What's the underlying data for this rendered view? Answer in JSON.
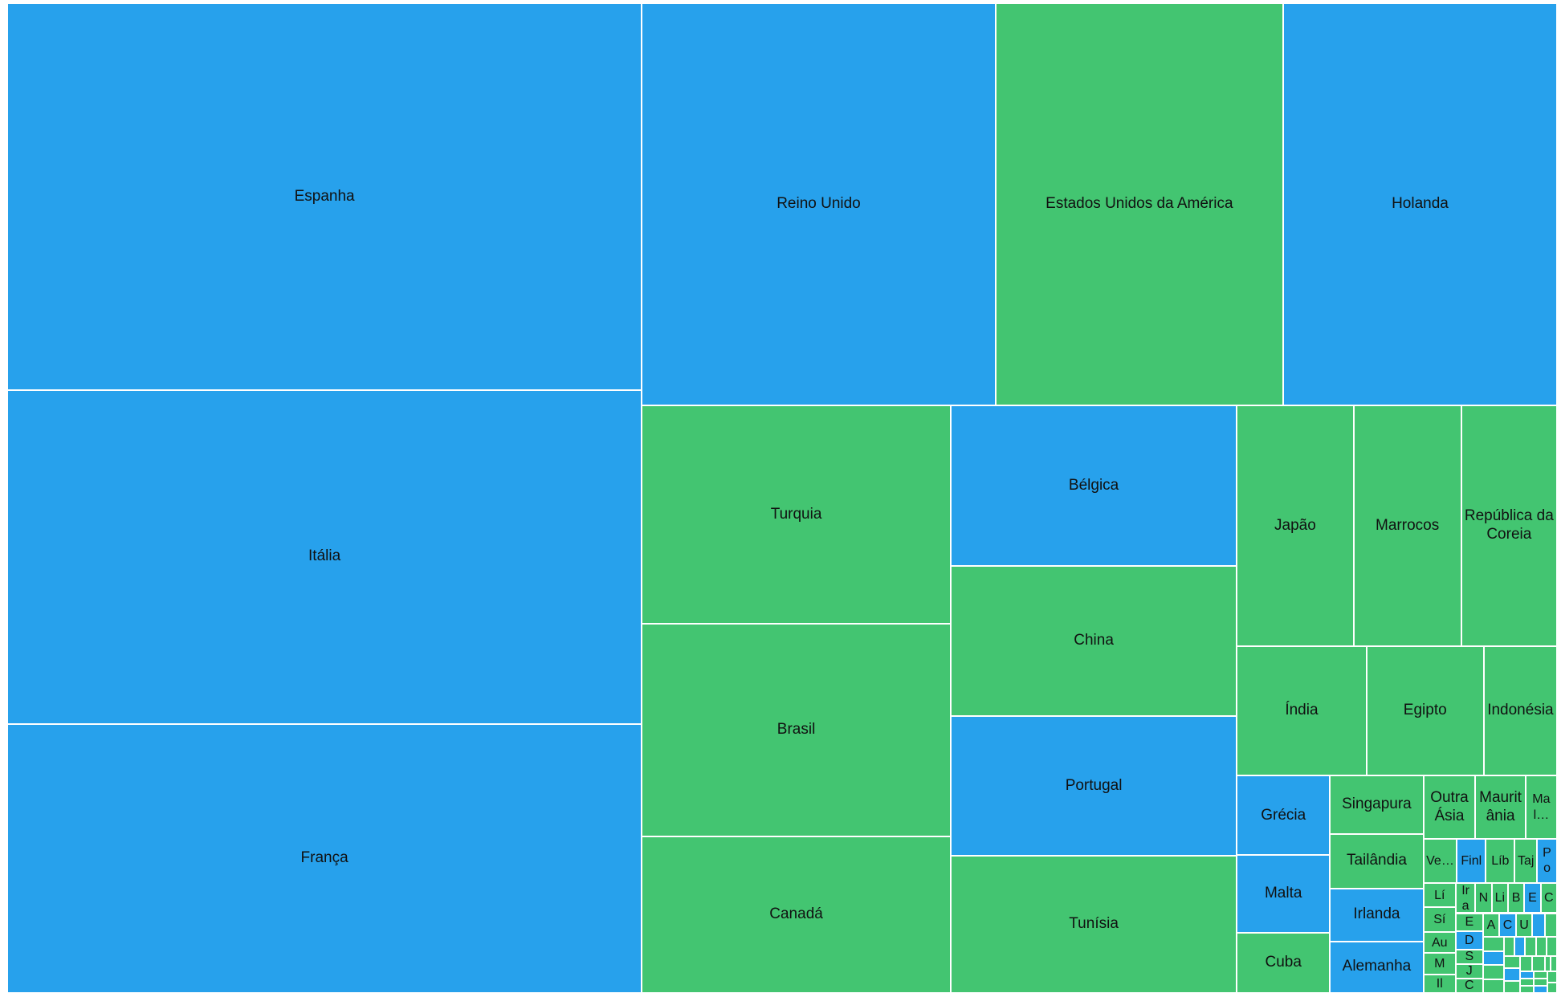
{
  "chart_data": {
    "type": "treemap",
    "categories": [
      "Espanha",
      "Itália",
      "França",
      "Reino Unido",
      "Estados Unidos da América",
      "Holanda",
      "Turquia",
      "Brasil",
      "Canadá",
      "Bélgica",
      "China",
      "Portugal",
      "Tunísia",
      "Japão",
      "Marrocos",
      "República da Coreia",
      "Índia",
      "Egipto",
      "Indonésia",
      "Grécia",
      "Malta",
      "Cuba",
      "Singapura",
      "Tailândia",
      "Irlanda",
      "Alemanha",
      "Outra Ásia",
      "Mauritânia",
      "Mal…",
      "Ve…",
      "Finl",
      "Líb",
      "Taj",
      "Po",
      "Lí",
      "Sí",
      "Au",
      "M",
      "Il",
      "Ira",
      "N",
      "Li",
      "B",
      "E",
      "C",
      "E",
      "D",
      "S",
      "J",
      "C",
      "A",
      "C",
      "U",
      null,
      null,
      null,
      null,
      null,
      null,
      null,
      null,
      null,
      null,
      null,
      null,
      null,
      null,
      null,
      null,
      null,
      null,
      null,
      null,
      null,
      null,
      null,
      null,
      null,
      null
    ],
    "values": [
      2488,
      2148,
      1731,
      1443,
      1173,
      1117,
      683,
      667,
      490,
      465,
      436,
      405,
      398,
      285,
      263,
      234,
      170,
      154,
      96,
      75,
      73,
      57,
      55,
      52,
      50,
      49,
      33,
      32,
      20,
      15,
      13,
      13,
      10,
      9,
      8,
      8,
      7,
      7,
      6,
      6,
      5,
      5,
      5,
      5,
      5,
      5,
      5,
      4,
      4,
      4,
      4,
      4,
      4,
      3,
      3,
      3,
      3,
      3,
      3,
      2,
      2,
      2,
      2,
      2,
      2,
      2,
      2,
      2,
      2,
      1,
      1,
      1,
      1,
      1,
      1,
      1,
      1,
      1,
      1
    ],
    "colors": [
      "#27a1ec",
      "#27a1ec",
      "#27a1ec",
      "#27a1ec",
      "#43c571",
      "#27a1ec",
      "#43c571",
      "#43c571",
      "#43c571",
      "#27a1ec",
      "#43c571",
      "#27a1ec",
      "#43c571",
      "#43c571",
      "#43c571",
      "#43c571",
      "#43c571",
      "#43c571",
      "#43c571",
      "#27a1ec",
      "#27a1ec",
      "#43c571",
      "#43c571",
      "#43c571",
      "#27a1ec",
      "#27a1ec",
      "#43c571",
      "#43c571",
      "#43c571",
      "#43c571",
      "#27a1ec",
      "#43c571",
      "#43c571",
      "#27a1ec",
      "#43c571",
      "#43c571",
      "#43c571",
      "#43c571",
      "#43c571",
      "#43c571",
      "#43c571",
      "#43c571",
      "#43c571",
      "#27a1ec",
      "#43c571",
      "#43c571",
      "#27a1ec",
      "#43c571",
      "#43c571",
      "#43c571",
      "#43c571",
      "#27a1ec",
      "#43c571",
      "#27a1ec",
      "#43c571",
      "#43c571",
      "#27a1ec",
      "#43c571",
      "#43c571",
      "#43c571",
      "#27a1ec",
      "#43c571",
      "#43c571",
      "#43c571",
      "#43c571",
      "#27a1ec",
      "#43c571",
      "#43c571",
      "#43c571",
      "#43c571",
      "#43c571",
      "#27a1ec",
      "#43c571",
      "#43c571",
      "#43c571",
      "#43c571",
      "#27a1ec",
      "#43c571",
      "#43c571"
    ]
  }
}
